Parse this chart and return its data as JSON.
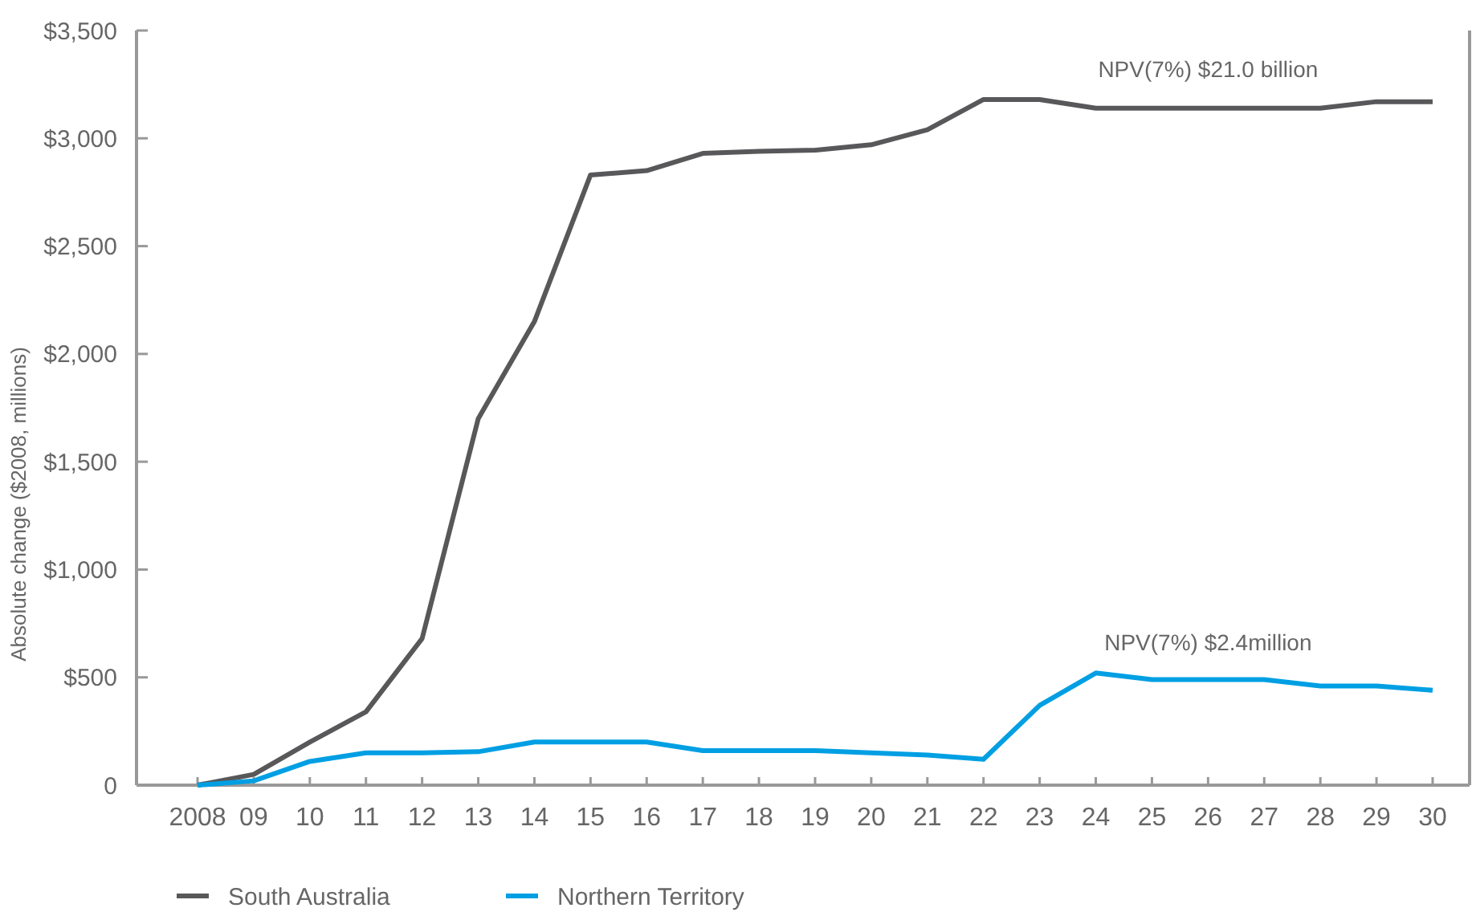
{
  "chart_data": {
    "type": "line",
    "ylabel": "Absolute change ($2008, millions)",
    "categories": [
      "2008",
      "09",
      "10",
      "11",
      "12",
      "13",
      "14",
      "15",
      "16",
      "17",
      "18",
      "19",
      "20",
      "21",
      "22",
      "23",
      "24",
      "25",
      "26",
      "27",
      "28",
      "29",
      "30"
    ],
    "ylim": [
      0,
      3500
    ],
    "yticks": [
      {
        "value": 0,
        "label": "0"
      },
      {
        "value": 500,
        "label": "$500"
      },
      {
        "value": 1000,
        "label": "$1,000"
      },
      {
        "value": 1500,
        "label": "$1,500"
      },
      {
        "value": 2000,
        "label": "$2,000"
      },
      {
        "value": 2500,
        "label": "$2,500"
      },
      {
        "value": 3000,
        "label": "$3,000"
      },
      {
        "value": 3500,
        "label": "$3,500"
      }
    ],
    "series": [
      {
        "name": "South Australia",
        "color": "#58585a",
        "values": [
          0,
          50,
          200,
          340,
          680,
          1700,
          2150,
          2830,
          2850,
          2930,
          2940,
          2945,
          2970,
          3040,
          3180,
          3180,
          3140,
          3140,
          3140,
          3140,
          3140,
          3170,
          3170
        ]
      },
      {
        "name": "Northern Territory",
        "color": "#009fe3",
        "values": [
          0,
          20,
          110,
          150,
          150,
          155,
          200,
          200,
          200,
          160,
          160,
          160,
          150,
          140,
          120,
          370,
          520,
          490,
          490,
          490,
          460,
          460,
          440
        ]
      }
    ],
    "annotations": [
      "NPV(7%) $21.0 billion",
      "NPV(7%) $2.4million"
    ],
    "legend": "bottom left",
    "grid": false,
    "marker": "none",
    "line_style": "solid"
  }
}
